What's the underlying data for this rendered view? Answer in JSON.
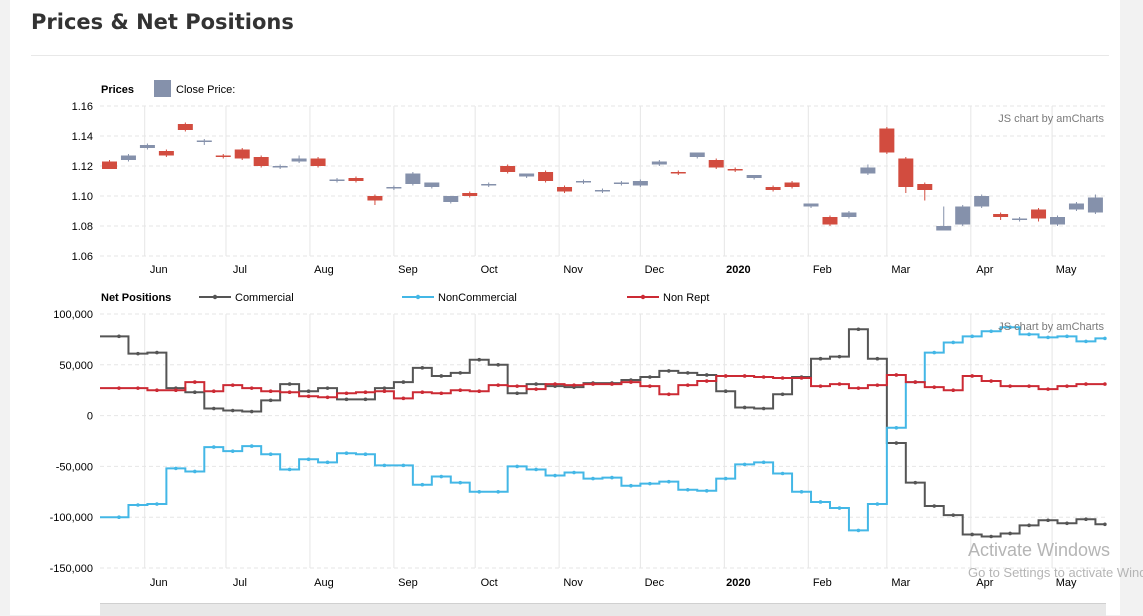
{
  "page": {
    "title": "Prices & Net Positions"
  },
  "watermark": {
    "line1": "Activate Windows",
    "line2": "Go to Settings to activate Windows."
  },
  "colors": {
    "up": "#8591ab",
    "down": "#d24c3f",
    "commercial": "#555555",
    "noncommercial": "#43b7e6",
    "nonrept": "#cc2a34",
    "grid": "#e6e6e6"
  },
  "chart_data": [
    {
      "type": "candlestick",
      "title": "Prices",
      "legend": [
        {
          "label": "Close Price:",
          "icon": "square-swatch",
          "color": "#8591ab"
        }
      ],
      "credit": "JS chart by amCharts",
      "ylim": [
        1.06,
        1.16
      ],
      "yticks": [
        "1.16",
        "1.14",
        "1.12",
        "1.10",
        "1.08",
        "1.06"
      ],
      "xlabels": [
        "Jun",
        "Jul",
        "Aug",
        "Sep",
        "Oct",
        "Nov",
        "Dec",
        "2020",
        "Feb",
        "Mar",
        "Apr",
        "May"
      ],
      "x_start": "2019-05-19",
      "interval": "weekly",
      "candles": [
        {
          "o": 1.123,
          "h": 1.124,
          "c": 1.118,
          "l": 1.118
        },
        {
          "o": 1.124,
          "h": 1.128,
          "c": 1.127,
          "l": 1.123
        },
        {
          "o": 1.132,
          "h": 1.135,
          "c": 1.134,
          "l": 1.131
        },
        {
          "o": 1.13,
          "h": 1.131,
          "c": 1.127,
          "l": 1.126
        },
        {
          "o": 1.148,
          "h": 1.149,
          "c": 1.144,
          "l": 1.143
        },
        {
          "o": 1.136,
          "h": 1.138,
          "c": 1.137,
          "l": 1.134
        },
        {
          "o": 1.127,
          "h": 1.128,
          "c": 1.126,
          "l": 1.125
        },
        {
          "o": 1.131,
          "h": 1.132,
          "c": 1.125,
          "l": 1.124
        },
        {
          "o": 1.126,
          "h": 1.127,
          "c": 1.12,
          "l": 1.119
        },
        {
          "o": 1.119,
          "h": 1.121,
          "c": 1.12,
          "l": 1.118
        },
        {
          "o": 1.123,
          "h": 1.127,
          "c": 1.125,
          "l": 1.122
        },
        {
          "o": 1.125,
          "h": 1.126,
          "c": 1.12,
          "l": 1.119
        },
        {
          "o": 1.11,
          "h": 1.112,
          "c": 1.111,
          "l": 1.109
        },
        {
          "o": 1.112,
          "h": 1.113,
          "c": 1.11,
          "l": 1.109
        },
        {
          "o": 1.1,
          "h": 1.101,
          "c": 1.097,
          "l": 1.094
        },
        {
          "o": 1.105,
          "h": 1.107,
          "c": 1.106,
          "l": 1.104
        },
        {
          "o": 1.108,
          "h": 1.116,
          "c": 1.115,
          "l": 1.107
        },
        {
          "o": 1.106,
          "h": 1.109,
          "c": 1.109,
          "l": 1.105
        },
        {
          "o": 1.096,
          "h": 1.1,
          "c": 1.1,
          "l": 1.095
        },
        {
          "o": 1.102,
          "h": 1.103,
          "c": 1.1,
          "l": 1.099
        },
        {
          "o": 1.107,
          "h": 1.109,
          "c": 1.108,
          "l": 1.106
        },
        {
          "o": 1.12,
          "h": 1.121,
          "c": 1.116,
          "l": 1.115
        },
        {
          "o": 1.113,
          "h": 1.115,
          "c": 1.115,
          "l": 1.112
        },
        {
          "o": 1.116,
          "h": 1.117,
          "c": 1.11,
          "l": 1.109
        },
        {
          "o": 1.106,
          "h": 1.107,
          "c": 1.103,
          "l": 1.102
        },
        {
          "o": 1.109,
          "h": 1.111,
          "c": 1.11,
          "l": 1.108
        },
        {
          "o": 1.103,
          "h": 1.105,
          "c": 1.104,
          "l": 1.102
        },
        {
          "o": 1.108,
          "h": 1.11,
          "c": 1.109,
          "l": 1.107
        },
        {
          "o": 1.107,
          "h": 1.111,
          "c": 1.11,
          "l": 1.106
        },
        {
          "o": 1.121,
          "h": 1.124,
          "c": 1.123,
          "l": 1.12
        },
        {
          "o": 1.116,
          "h": 1.117,
          "c": 1.115,
          "l": 1.114
        },
        {
          "o": 1.126,
          "h": 1.129,
          "c": 1.129,
          "l": 1.125
        },
        {
          "o": 1.124,
          "h": 1.125,
          "c": 1.119,
          "l": 1.118
        },
        {
          "o": 1.118,
          "h": 1.119,
          "c": 1.117,
          "l": 1.116
        },
        {
          "o": 1.112,
          "h": 1.114,
          "c": 1.114,
          "l": 1.111
        },
        {
          "o": 1.106,
          "h": 1.107,
          "c": 1.104,
          "l": 1.103
        },
        {
          "o": 1.109,
          "h": 1.11,
          "c": 1.106,
          "l": 1.105
        },
        {
          "o": 1.093,
          "h": 1.095,
          "c": 1.095,
          "l": 1.092
        },
        {
          "o": 1.086,
          "h": 1.087,
          "c": 1.081,
          "l": 1.08
        },
        {
          "o": 1.086,
          "h": 1.09,
          "c": 1.089,
          "l": 1.085
        },
        {
          "o": 1.115,
          "h": 1.121,
          "c": 1.119,
          "l": 1.114
        },
        {
          "o": 1.145,
          "h": 1.146,
          "c": 1.129,
          "l": 1.128
        },
        {
          "o": 1.125,
          "h": 1.126,
          "c": 1.106,
          "l": 1.102
        },
        {
          "o": 1.108,
          "h": 1.109,
          "c": 1.104,
          "l": 1.097
        },
        {
          "o": 1.077,
          "h": 1.093,
          "c": 1.08,
          "l": 1.077
        },
        {
          "o": 1.081,
          "h": 1.094,
          "c": 1.093,
          "l": 1.08
        },
        {
          "o": 1.093,
          "h": 1.101,
          "c": 1.1,
          "l": 1.092
        },
        {
          "o": 1.088,
          "h": 1.089,
          "c": 1.086,
          "l": 1.084
        },
        {
          "o": 1.084,
          "h": 1.086,
          "c": 1.085,
          "l": 1.083
        },
        {
          "o": 1.091,
          "h": 1.092,
          "c": 1.085,
          "l": 1.083
        },
        {
          "o": 1.081,
          "h": 1.087,
          "c": 1.086,
          "l": 1.08
        },
        {
          "o": 1.091,
          "h": 1.096,
          "c": 1.095,
          "l": 1.09
        },
        {
          "o": 1.089,
          "h": 1.101,
          "c": 1.099,
          "l": 1.088
        }
      ]
    },
    {
      "type": "line",
      "subtype": "step",
      "title": "Net Positions",
      "credit": "JS chart by amCharts",
      "ylim": [
        -150000,
        100000
      ],
      "yticks": [
        "100,000",
        "50,000",
        "0",
        "-50,000",
        "-100,000",
        "-150,000"
      ],
      "xlabels": [
        "Jun",
        "Jul",
        "Aug",
        "Sep",
        "Oct",
        "Nov",
        "Dec",
        "2020",
        "Feb",
        "Mar",
        "Apr",
        "May"
      ],
      "x_start": "2019-05-19",
      "interval": "weekly",
      "series": [
        {
          "name": "Commercial",
          "values": [
            78000,
            61000,
            62000,
            27000,
            23000,
            7000,
            5000,
            4000,
            15000,
            31000,
            24000,
            27000,
            16000,
            16000,
            27000,
            33000,
            47000,
            39000,
            42000,
            55000,
            50000,
            22000,
            31000,
            29000,
            28000,
            32000,
            32000,
            35000,
            38000,
            44000,
            42000,
            40000,
            24000,
            8000,
            7000,
            21000,
            38000,
            56000,
            58000,
            85000,
            56000,
            -27000,
            -66000,
            -89000,
            -98000,
            -117000,
            -119000,
            -116000,
            -108000,
            -103000,
            -106000,
            -102000,
            -107000
          ]
        },
        {
          "name": "NonCommercial",
          "values": [
            -100000,
            -88000,
            -87000,
            -52000,
            -55000,
            -31000,
            -35000,
            -30000,
            -38000,
            -53000,
            -43000,
            -46000,
            -37000,
            -38000,
            -49000,
            -49000,
            -68000,
            -60000,
            -66000,
            -75000,
            -75000,
            -50000,
            -53000,
            -59000,
            -56000,
            -62000,
            -61000,
            -69000,
            -67000,
            -65000,
            -73000,
            -74000,
            -62000,
            -48000,
            -46000,
            -57000,
            -75000,
            -85000,
            -91000,
            -113000,
            -87000,
            -12000,
            33000,
            62000,
            72000,
            78000,
            83000,
            87000,
            80000,
            77000,
            78000,
            73000,
            76000
          ]
        },
        {
          "name": "Non Rept",
          "values": [
            27000,
            27000,
            25000,
            25000,
            33000,
            24000,
            30000,
            27000,
            24000,
            23000,
            19000,
            18000,
            22000,
            23000,
            24000,
            17000,
            23000,
            22000,
            25000,
            24000,
            30000,
            29000,
            26000,
            31000,
            30000,
            31000,
            31000,
            33000,
            29000,
            21000,
            30000,
            34000,
            39000,
            39000,
            38000,
            37000,
            37000,
            29000,
            31000,
            27000,
            30000,
            40000,
            33000,
            28000,
            25000,
            39000,
            34000,
            29000,
            29000,
            26000,
            29000,
            31000,
            31000
          ]
        }
      ]
    }
  ]
}
